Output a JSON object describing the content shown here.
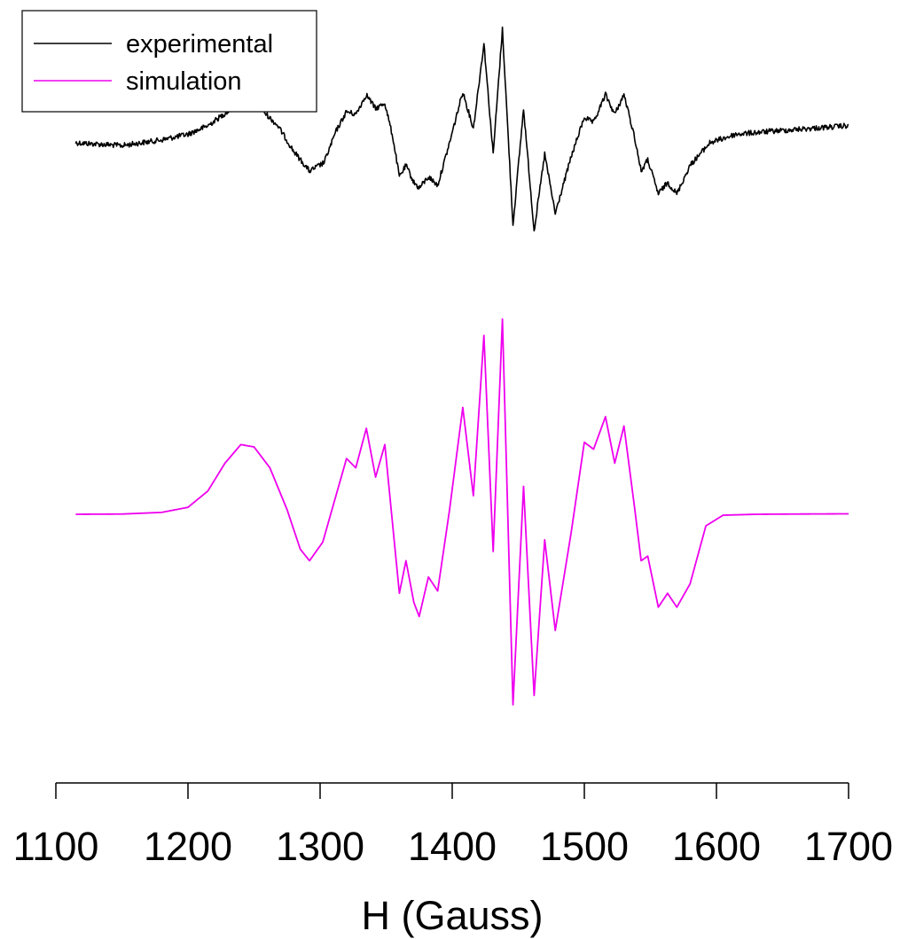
{
  "chart_data": {
    "type": "line",
    "xlabel": "H (Gauss)",
    "ylabel": "",
    "title": "",
    "xlim": [
      1100,
      1700
    ],
    "x_ticks": [
      1100,
      1200,
      1300,
      1400,
      1500,
      1600,
      1700
    ],
    "y_axis_shown": false,
    "grid": false,
    "legend_position": "top-left",
    "series": [
      {
        "name": "experimental",
        "color": "#000000",
        "noisy": true,
        "points": [
          [
            1115,
            0.6
          ],
          [
            1150,
            0.59
          ],
          [
            1180,
            0.61
          ],
          [
            1200,
            0.63
          ],
          [
            1215,
            0.66
          ],
          [
            1230,
            0.71
          ],
          [
            1242,
            0.74
          ],
          [
            1255,
            0.72
          ],
          [
            1268,
            0.66
          ],
          [
            1280,
            0.57
          ],
          [
            1292,
            0.5
          ],
          [
            1303,
            0.53
          ],
          [
            1312,
            0.64
          ],
          [
            1320,
            0.71
          ],
          [
            1327,
            0.7
          ],
          [
            1335,
            0.77
          ],
          [
            1342,
            0.72
          ],
          [
            1349,
            0.74
          ],
          [
            1355,
            0.62
          ],
          [
            1360,
            0.48
          ],
          [
            1365,
            0.52
          ],
          [
            1371,
            0.46
          ],
          [
            1375,
            0.44
          ],
          [
            1382,
            0.48
          ],
          [
            1389,
            0.45
          ],
          [
            1398,
            0.6
          ],
          [
            1408,
            0.78
          ],
          [
            1416,
            0.65
          ],
          [
            1424,
            0.95
          ],
          [
            1431,
            0.56
          ],
          [
            1438,
            1.0
          ],
          [
            1446,
            0.31
          ],
          [
            1454,
            0.72
          ],
          [
            1462,
            0.29
          ],
          [
            1470,
            0.56
          ],
          [
            1478,
            0.35
          ],
          [
            1490,
            0.55
          ],
          [
            1500,
            0.69
          ],
          [
            1507,
            0.67
          ],
          [
            1516,
            0.77
          ],
          [
            1523,
            0.7
          ],
          [
            1530,
            0.77
          ],
          [
            1538,
            0.62
          ],
          [
            1543,
            0.5
          ],
          [
            1548,
            0.54
          ],
          [
            1556,
            0.42
          ],
          [
            1563,
            0.46
          ],
          [
            1570,
            0.42
          ],
          [
            1580,
            0.52
          ],
          [
            1595,
            0.6
          ],
          [
            1615,
            0.63
          ],
          [
            1640,
            0.64
          ],
          [
            1670,
            0.65
          ],
          [
            1700,
            0.66
          ]
        ]
      },
      {
        "name": "simulation",
        "color": "#ee00ee",
        "noisy": false,
        "points": [
          [
            1115,
            0.0
          ],
          [
            1150,
            0.001
          ],
          [
            1180,
            0.008
          ],
          [
            1200,
            0.03
          ],
          [
            1215,
            0.1
          ],
          [
            1228,
            0.22
          ],
          [
            1240,
            0.3
          ],
          [
            1250,
            0.29
          ],
          [
            1262,
            0.2
          ],
          [
            1275,
            0.02
          ],
          [
            1285,
            -0.15
          ],
          [
            1292,
            -0.2
          ],
          [
            1302,
            -0.12
          ],
          [
            1312,
            0.08
          ],
          [
            1320,
            0.24
          ],
          [
            1327,
            0.2
          ],
          [
            1335,
            0.37
          ],
          [
            1342,
            0.16
          ],
          [
            1349,
            0.3
          ],
          [
            1355,
            -0.05
          ],
          [
            1360,
            -0.34
          ],
          [
            1365,
            -0.2
          ],
          [
            1371,
            -0.38
          ],
          [
            1375,
            -0.44
          ],
          [
            1382,
            -0.27
          ],
          [
            1389,
            -0.33
          ],
          [
            1398,
            0.02
          ],
          [
            1408,
            0.46
          ],
          [
            1416,
            0.08
          ],
          [
            1424,
            0.77
          ],
          [
            1431,
            -0.16
          ],
          [
            1438,
            0.84
          ],
          [
            1446,
            -0.82
          ],
          [
            1454,
            0.12
          ],
          [
            1462,
            -0.78
          ],
          [
            1470,
            -0.11
          ],
          [
            1478,
            -0.5
          ],
          [
            1490,
            -0.08
          ],
          [
            1500,
            0.31
          ],
          [
            1507,
            0.28
          ],
          [
            1516,
            0.42
          ],
          [
            1523,
            0.22
          ],
          [
            1530,
            0.38
          ],
          [
            1538,
            0.03
          ],
          [
            1543,
            -0.2
          ],
          [
            1548,
            -0.18
          ],
          [
            1556,
            -0.4
          ],
          [
            1563,
            -0.34
          ],
          [
            1570,
            -0.4
          ],
          [
            1580,
            -0.3
          ],
          [
            1592,
            -0.05
          ],
          [
            1605,
            -0.004
          ],
          [
            1630,
            0.0
          ],
          [
            1660,
            0.001
          ],
          [
            1700,
            0.002
          ]
        ]
      }
    ]
  }
}
